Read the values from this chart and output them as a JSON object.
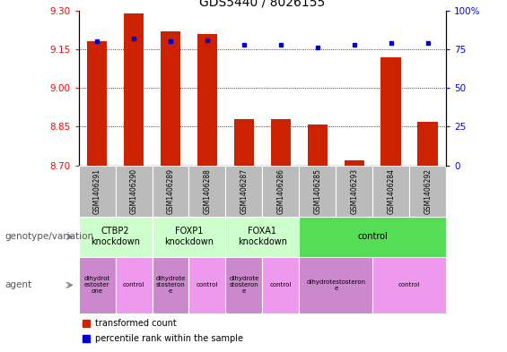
{
  "title": "GDS5440 / 8026155",
  "samples": [
    "GSM1406291",
    "GSM1406290",
    "GSM1406289",
    "GSM1406288",
    "GSM1406287",
    "GSM1406286",
    "GSM1406285",
    "GSM1406293",
    "GSM1406284",
    "GSM1406292"
  ],
  "red_values": [
    9.18,
    9.29,
    9.22,
    9.21,
    8.88,
    8.88,
    8.86,
    8.72,
    9.12,
    8.87
  ],
  "blue_values": [
    80,
    82,
    80,
    81,
    78,
    78,
    76,
    78,
    79,
    79
  ],
  "ylim": [
    8.7,
    9.3
  ],
  "y2lim": [
    0,
    100
  ],
  "yticks": [
    8.7,
    8.85,
    9.0,
    9.15,
    9.3
  ],
  "y2ticks": [
    0,
    25,
    50,
    75,
    100
  ],
  "gridlines": [
    8.85,
    9.0,
    9.15
  ],
  "bar_color": "#cc2200",
  "dot_color": "#0000cc",
  "bar_width": 0.55,
  "genotype_groups": [
    {
      "label": "CTBP2\nknockdown",
      "start": 0,
      "end": 2,
      "color": "#ccffcc"
    },
    {
      "label": "FOXP1\nknockdown",
      "start": 2,
      "end": 4,
      "color": "#ccffcc"
    },
    {
      "label": "FOXA1\nknockdown",
      "start": 4,
      "end": 6,
      "color": "#ccffcc"
    },
    {
      "label": "control",
      "start": 6,
      "end": 10,
      "color": "#55dd55"
    }
  ],
  "agent_groups": [
    {
      "label": "dihydrot\nestoster\none",
      "start": 0,
      "end": 1,
      "color": "#cc88cc"
    },
    {
      "label": "control",
      "start": 1,
      "end": 2,
      "color": "#ee99ee"
    },
    {
      "label": "dihydrote\nstosteron\ne",
      "start": 2,
      "end": 3,
      "color": "#cc88cc"
    },
    {
      "label": "control",
      "start": 3,
      "end": 4,
      "color": "#ee99ee"
    },
    {
      "label": "dihydrote\nstosteron\ne",
      "start": 4,
      "end": 5,
      "color": "#cc88cc"
    },
    {
      "label": "control",
      "start": 5,
      "end": 6,
      "color": "#ee99ee"
    },
    {
      "label": "dihydrotestosteron\ne",
      "start": 6,
      "end": 8,
      "color": "#cc88cc"
    },
    {
      "label": "control",
      "start": 8,
      "end": 10,
      "color": "#ee99ee"
    }
  ],
  "legend_red": "transformed count",
  "legend_blue": "percentile rank within the sample",
  "left_label": "genotype/variation",
  "left_label2": "agent",
  "sample_bg_color": "#bbbbbb",
  "title_fontsize": 10,
  "tick_fontsize": 7.5,
  "label_fontsize": 8
}
